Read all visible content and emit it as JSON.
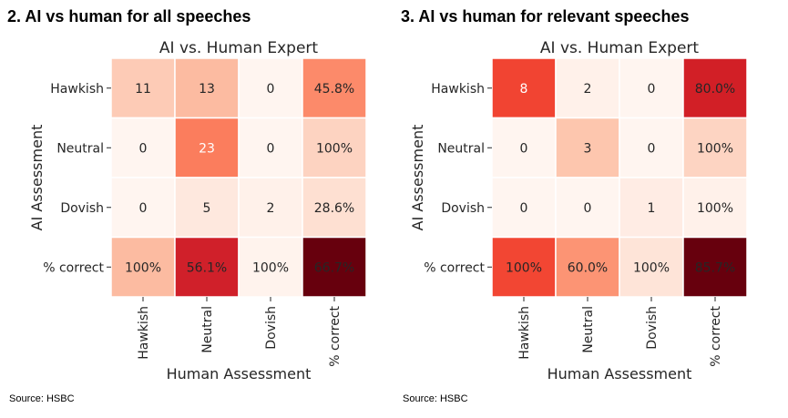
{
  "panels": [
    {
      "heading": "2. AI vs human for all speeches",
      "source": "Source: HSBC",
      "chart_data": {
        "type": "heatmap",
        "title": "AI vs. Human Expert",
        "xlabel": "Human Assessment",
        "ylabel": "AI Assessment",
        "x_categories": [
          "Hawkish",
          "Neutral",
          "Dovish",
          "% correct"
        ],
        "y_categories": [
          "Hawkish",
          "Neutral",
          "Dovish",
          "% correct"
        ],
        "cells": [
          [
            "11",
            "13",
            "0",
            "45.8%"
          ],
          [
            "0",
            "23",
            "0",
            "100%"
          ],
          [
            "0",
            "5",
            "2",
            "28.6%"
          ],
          [
            "100%",
            "56.1%",
            "100%",
            "66.7%"
          ]
        ],
        "cell_colors": [
          [
            "#fdcbb6",
            "#fcbba1",
            "#fff5f0",
            "#fc8a6a"
          ],
          [
            "#fff5f0",
            "#fb7d5d",
            "#fff5f0",
            "#fdd3c1"
          ],
          [
            "#fff5f0",
            "#fee8de",
            "#fff1ea",
            "#fee0d2"
          ],
          [
            "#fcbba1",
            "#d0202a",
            "#fff3ed",
            "#67000d"
          ]
        ],
        "text_colors": [
          [
            "#262626",
            "#262626",
            "#262626",
            "#262626"
          ],
          [
            "#262626",
            "#ffffff",
            "#262626",
            "#262626"
          ],
          [
            "#262626",
            "#262626",
            "#262626",
            "#262626"
          ],
          [
            "#262626",
            "#262626",
            "#262626",
            "#262626"
          ]
        ]
      }
    },
    {
      "heading": "3. AI vs human for relevant speeches",
      "source": "Source: HSBC",
      "chart_data": {
        "type": "heatmap",
        "title": "AI vs. Human Expert",
        "xlabel": "Human Assessment",
        "ylabel": "AI Assessment",
        "x_categories": [
          "Hawkish",
          "Neutral",
          "Dovish",
          "% correct"
        ],
        "y_categories": [
          "Hawkish",
          "Neutral",
          "Dovish",
          "% correct"
        ],
        "cells": [
          [
            "8",
            "2",
            "0",
            "80.0%"
          ],
          [
            "0",
            "3",
            "0",
            "100%"
          ],
          [
            "0",
            "0",
            "1",
            "100%"
          ],
          [
            "100%",
            "60.0%",
            "100%",
            "85.7%"
          ]
        ],
        "cell_colors": [
          [
            "#f14432",
            "#fff1ea",
            "#fff5f0",
            "#d21f26"
          ],
          [
            "#fff5f0",
            "#fdc6ae",
            "#fff5f0",
            "#fdd4c2"
          ],
          [
            "#fff5f0",
            "#fff5f0",
            "#ffece4",
            "#fff1ea"
          ],
          [
            "#f24633",
            "#fc9474",
            "#fee4d8",
            "#67000d"
          ]
        ],
        "text_colors": [
          [
            "#ffffff",
            "#262626",
            "#262626",
            "#262626"
          ],
          [
            "#262626",
            "#262626",
            "#262626",
            "#262626"
          ],
          [
            "#262626",
            "#262626",
            "#262626",
            "#262626"
          ],
          [
            "#262626",
            "#262626",
            "#262626",
            "#262626"
          ]
        ]
      }
    }
  ]
}
